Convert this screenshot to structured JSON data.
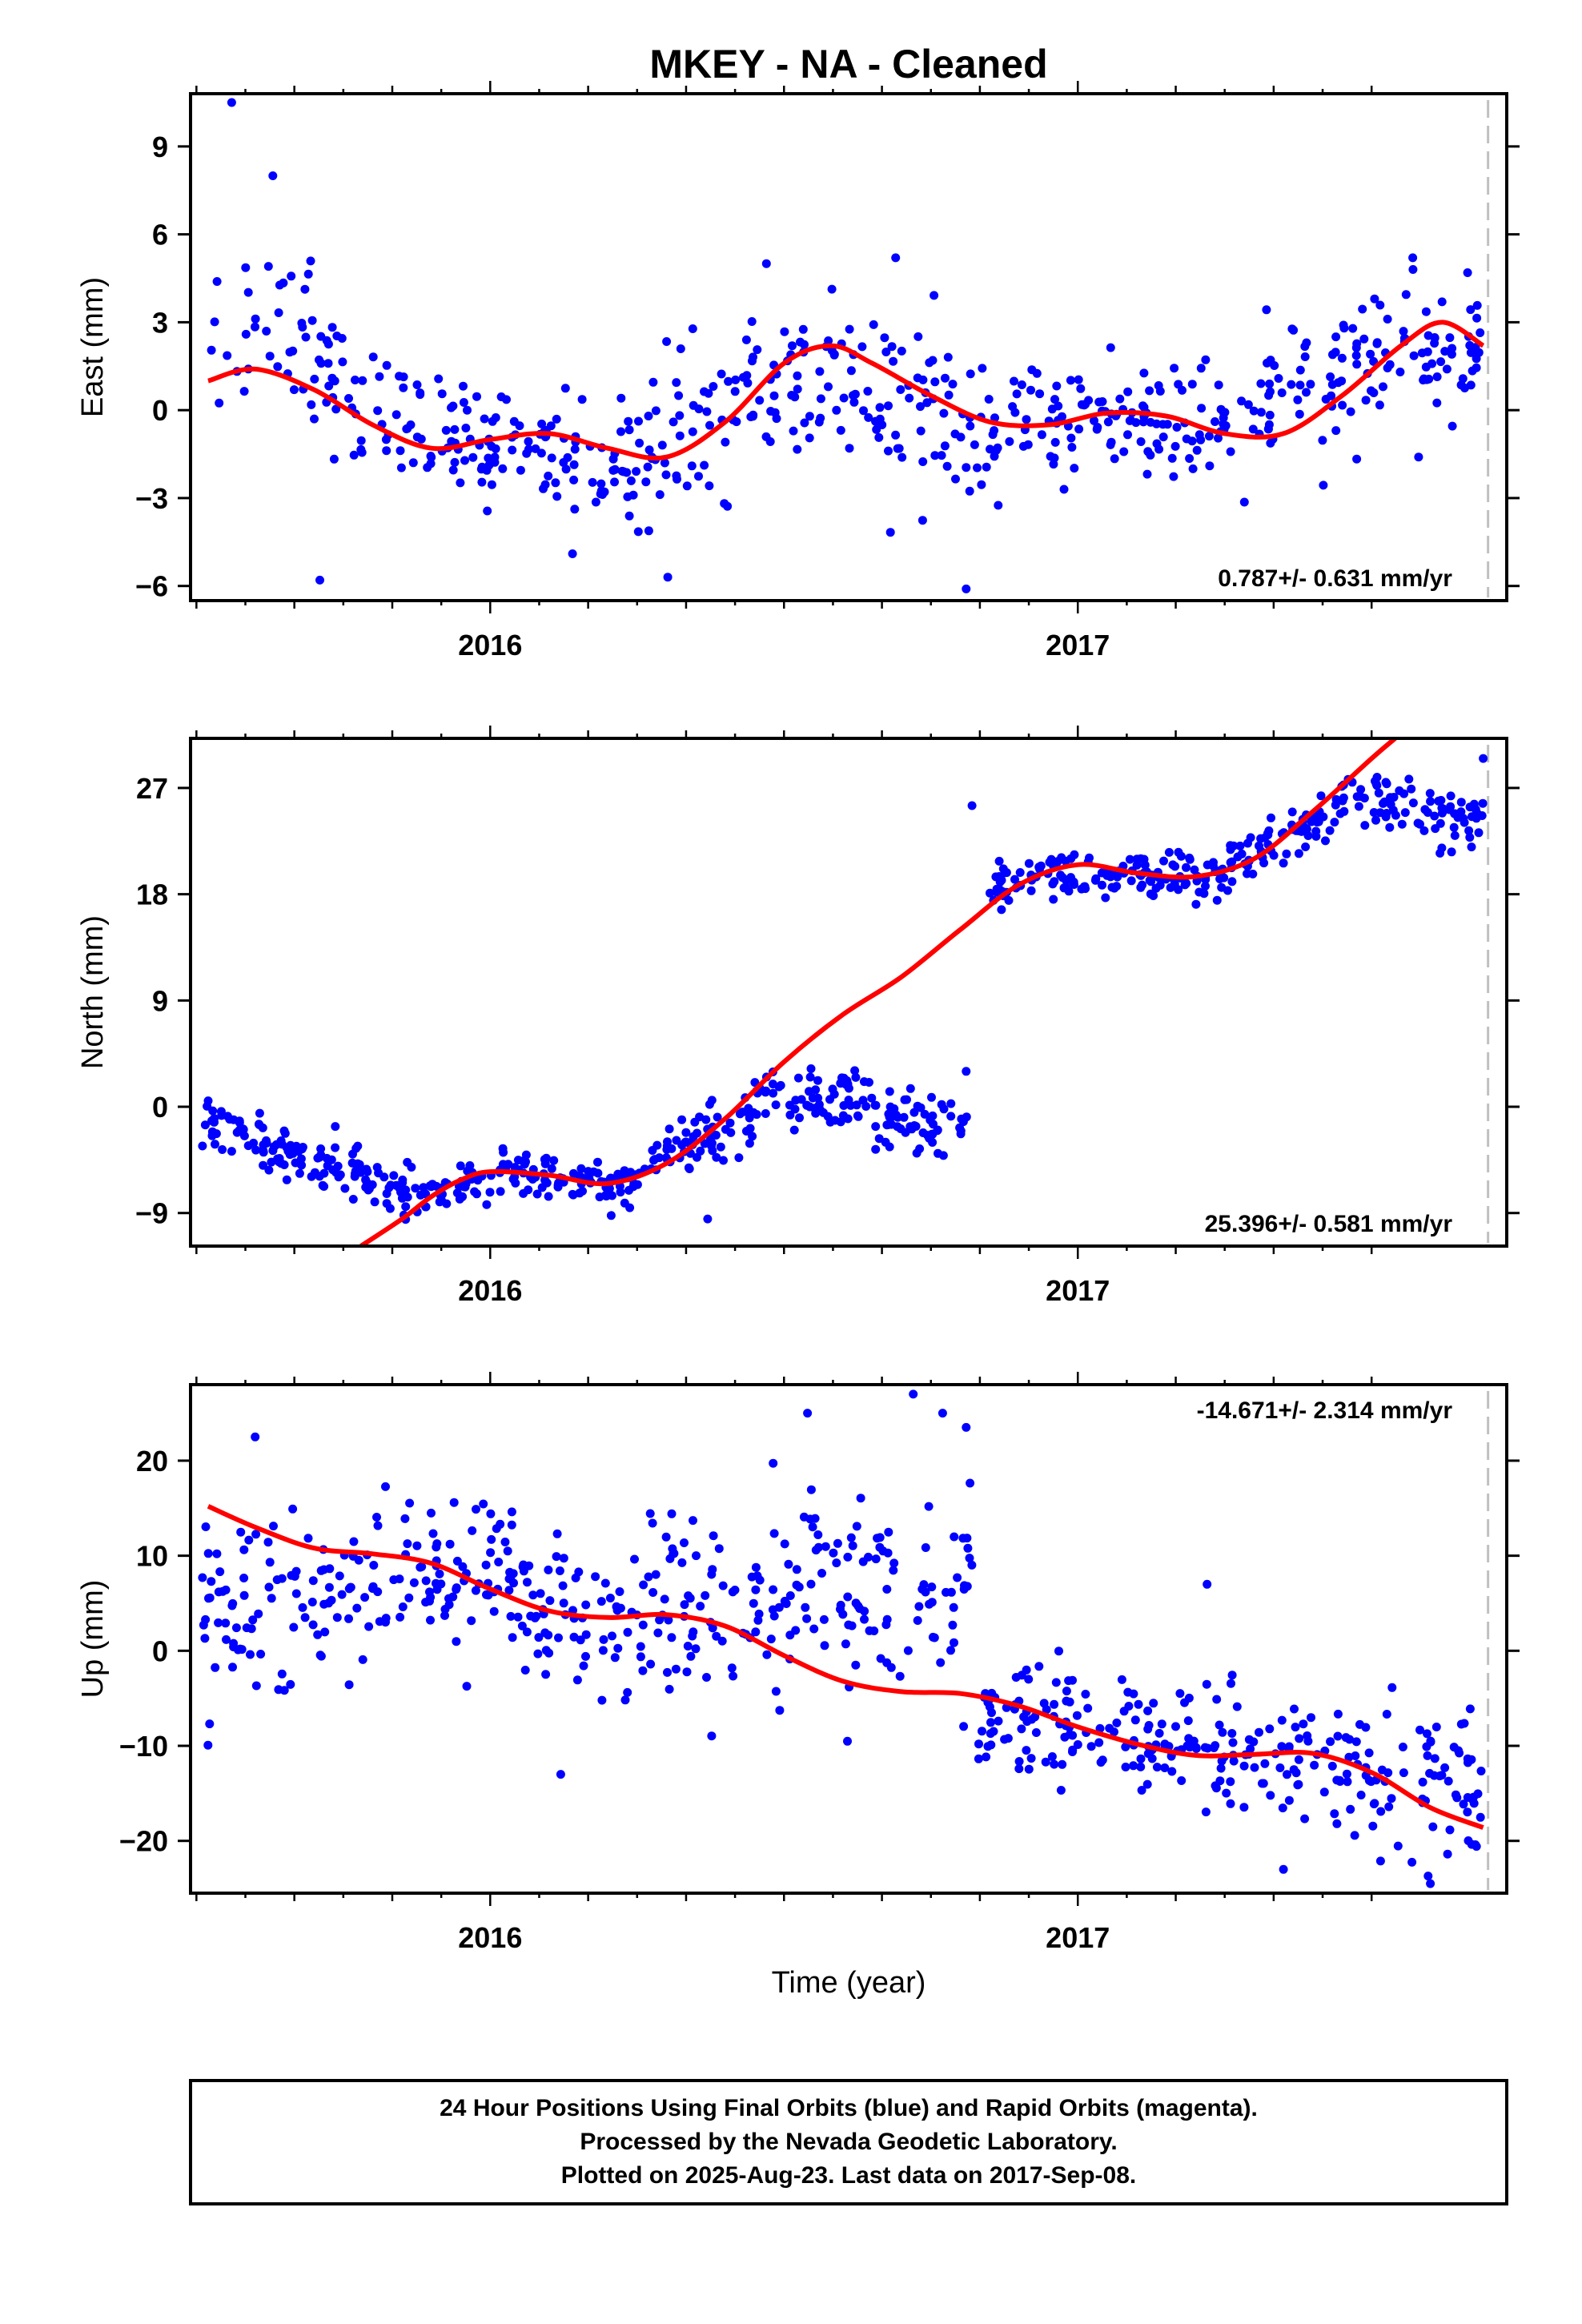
{
  "title": "MKEY  - NA - Cleaned",
  "xlabel": "Time (year)",
  "footer": [
    "24 Hour Positions Using Final Orbits (blue) and Rapid Orbits (magenta).",
    "Processed by the Nevada Geodetic Laboratory.",
    "Plotted on 2025-Aug-23. Last data on 2017-Sep-08."
  ],
  "colors": {
    "points": "#0000ff",
    "fit": "#ff0000",
    "last_data_line": "#c0c0c0"
  },
  "chart_data": [
    {
      "type": "scatter",
      "ylabel": "East (mm)",
      "rate": "0.787+/- 0.631 mm/yr",
      "xlim": [
        2015.49,
        2017.73
      ],
      "ylim": [
        -6.5,
        10.8
      ],
      "yticks": [
        9,
        6,
        3,
        0,
        -3,
        -6
      ],
      "ytick_labels": [
        "9",
        "6",
        "3",
        "0",
        "−3",
        "−6"
      ],
      "xticks": [
        2016,
        2017
      ],
      "last_data": 2017.69,
      "fit": {
        "x": [
          2015.52,
          2015.6,
          2015.7,
          2015.8,
          2015.9,
          2016.0,
          2016.1,
          2016.2,
          2016.3,
          2016.4,
          2016.5,
          2016.58,
          2016.65,
          2016.75,
          2016.85,
          2016.95,
          2017.05,
          2017.15,
          2017.25,
          2017.35,
          2017.45,
          2017.55,
          2017.62,
          2017.69
        ],
        "y": [
          1.0,
          1.4,
          0.7,
          -0.5,
          -1.3,
          -1.0,
          -0.8,
          -1.3,
          -1.6,
          -0.4,
          1.6,
          2.2,
          1.6,
          0.5,
          -0.4,
          -0.5,
          -0.1,
          -0.2,
          -0.8,
          -0.8,
          0.5,
          2.2,
          3.0,
          2.2
        ]
      },
      "segments": [
        {
          "x0": 2015.51,
          "x1": 2015.6,
          "n": 12,
          "c0": 2.0,
          "c1": 3.5,
          "s": 1.6
        },
        {
          "x0": 2015.6,
          "x1": 2015.7,
          "n": 22,
          "c0": 3.6,
          "c1": 3.0,
          "s": 1.6
        },
        {
          "x0": 2015.7,
          "x1": 2015.8,
          "n": 28,
          "c0": 1.5,
          "c1": 0.0,
          "s": 1.1
        },
        {
          "x0": 2015.8,
          "x1": 2016.0,
          "n": 60,
          "c0": -0.3,
          "c1": -1.2,
          "s": 1.0
        },
        {
          "x0": 2016.0,
          "x1": 2016.3,
          "n": 90,
          "c0": -1.0,
          "c1": -2.0,
          "s": 1.0
        },
        {
          "x0": 2016.3,
          "x1": 2016.5,
          "n": 55,
          "c0": -1.2,
          "c1": 1.2,
          "s": 1.3
        },
        {
          "x0": 2016.5,
          "x1": 2016.8,
          "n": 90,
          "c0": 1.2,
          "c1": -0.5,
          "s": 1.5
        },
        {
          "x0": 2016.8,
          "x1": 2017.0,
          "n": 55,
          "c0": -1.0,
          "c1": -0.5,
          "s": 1.0
        },
        {
          "x0": 2017.0,
          "x1": 2017.3,
          "n": 90,
          "c0": -0.2,
          "c1": -0.6,
          "s": 1.0
        },
        {
          "x0": 2017.3,
          "x1": 2017.5,
          "n": 60,
          "c0": -0.5,
          "c1": 1.8,
          "s": 1.2
        },
        {
          "x0": 2017.5,
          "x1": 2017.69,
          "n": 60,
          "c0": 2.3,
          "c1": 2.0,
          "s": 1.1
        }
      ],
      "outliers": [
        [
          2015.56,
          10.5
        ],
        [
          2015.63,
          8.0
        ],
        [
          2015.71,
          -5.8
        ],
        [
          2016.14,
          -4.9
        ],
        [
          2016.81,
          -6.1
        ],
        [
          2016.69,
          5.2
        ],
        [
          2016.47,
          5.0
        ],
        [
          2017.57,
          5.2
        ],
        [
          2017.58,
          -1.6
        ]
      ]
    },
    {
      "type": "scatter",
      "ylabel": "North (mm)",
      "rate": "25.396+/- 0.581 mm/yr",
      "xlim": [
        2015.49,
        2017.73
      ],
      "ylim": [
        -11.8,
        31.2
      ],
      "yticks": [
        27,
        18,
        9,
        0,
        -9
      ],
      "ytick_labels": [
        "27",
        "18",
        "9",
        "0",
        "−9"
      ],
      "xticks": [
        2016,
        2017
      ],
      "last_data": 2017.69,
      "fit": {
        "x": [
          2015.78,
          2015.85,
          2015.9,
          2015.95,
          2016.0,
          2016.1,
          2016.2,
          2016.3,
          2016.4,
          2016.5,
          2016.6,
          2016.7,
          2016.8,
          2016.9,
          2017.0,
          2017.1,
          2017.2,
          2017.3,
          2017.4,
          2017.5,
          2017.54
        ],
        "y": [
          -11.8,
          -9.5,
          -7.6,
          -6.2,
          -5.5,
          -5.8,
          -6.5,
          -4.8,
          -1.0,
          3.8,
          7.8,
          11.0,
          15.0,
          18.8,
          20.5,
          19.8,
          19.5,
          21.0,
          25.0,
          29.5,
          31.2
        ]
      },
      "segments": [
        {
          "x0": 2015.51,
          "x1": 2015.7,
          "n": 70,
          "c0": -1.5,
          "c1": -4.5,
          "s": 1.0
        },
        {
          "x0": 2015.7,
          "x1": 2015.9,
          "n": 75,
          "c0": -4.5,
          "c1": -8.0,
          "s": 1.1
        },
        {
          "x0": 2015.9,
          "x1": 2016.1,
          "n": 70,
          "c0": -7.0,
          "c1": -5.5,
          "s": 1.0
        },
        {
          "x0": 2016.1,
          "x1": 2016.25,
          "n": 55,
          "c0": -6.0,
          "c1": -6.5,
          "s": 1.0
        },
        {
          "x0": 2016.25,
          "x1": 2016.45,
          "n": 70,
          "c0": -5.5,
          "c1": -0.5,
          "s": 1.2
        },
        {
          "x0": 2016.45,
          "x1": 2016.65,
          "n": 70,
          "c0": 0.8,
          "c1": 0.5,
          "s": 1.4
        },
        {
          "x0": 2016.65,
          "x1": 2016.82,
          "n": 60,
          "c0": -1.0,
          "c1": -2.5,
          "s": 1.4
        },
        {
          "x0": 2016.85,
          "x1": 2017.0,
          "n": 55,
          "c0": 18.5,
          "c1": 20.0,
          "s": 1.0
        },
        {
          "x0": 2017.0,
          "x1": 2017.25,
          "n": 90,
          "c0": 19.5,
          "c1": 19.5,
          "s": 0.9
        },
        {
          "x0": 2017.25,
          "x1": 2017.45,
          "n": 70,
          "c0": 20.5,
          "c1": 25.0,
          "s": 1.0
        },
        {
          "x0": 2017.45,
          "x1": 2017.69,
          "n": 80,
          "c0": 26.0,
          "c1": 24.0,
          "s": 1.2
        }
      ],
      "outliers": [
        [
          2016.82,
          25.5
        ],
        [
          2017.69,
          29.5
        ],
        [
          2015.52,
          0.5
        ],
        [
          2016.37,
          -9.5
        ],
        [
          2016.81,
          3.0
        ],
        [
          2017.67,
          22.0
        ]
      ]
    },
    {
      "type": "scatter",
      "ylabel": "Up (mm)",
      "rate": "-14.671+/- 2.314 mm/yr",
      "xlim": [
        2015.49,
        2017.73
      ],
      "ylim": [
        -25.5,
        28.0
      ],
      "yticks": [
        20,
        10,
        0,
        -10,
        -20
      ],
      "ytick_labels": [
        "20",
        "10",
        "0",
        "−10",
        "−20"
      ],
      "xticks": [
        2016,
        2017
      ],
      "last_data": 2017.69,
      "fit": {
        "x": [
          2015.52,
          2015.6,
          2015.7,
          2015.8,
          2015.9,
          2016.0,
          2016.1,
          2016.2,
          2016.3,
          2016.4,
          2016.5,
          2016.6,
          2016.7,
          2016.8,
          2016.9,
          2017.0,
          2017.1,
          2017.2,
          2017.3,
          2017.4,
          2017.5,
          2017.6,
          2017.69
        ],
        "y": [
          15.2,
          13.0,
          10.8,
          10.2,
          9.2,
          6.5,
          4.2,
          3.5,
          3.8,
          2.6,
          -0.5,
          -3.2,
          -4.3,
          -4.5,
          -5.8,
          -8.0,
          -9.8,
          -11.0,
          -10.9,
          -10.8,
          -12.8,
          -16.5,
          -18.6
        ]
      },
      "segments": [
        {
          "x0": 2015.51,
          "x1": 2015.8,
          "n": 95,
          "c0": 5.0,
          "c1": 6.0,
          "s": 4.5
        },
        {
          "x0": 2015.8,
          "x1": 2016.05,
          "n": 85,
          "c0": 8.0,
          "c1": 8.0,
          "s": 4.0
        },
        {
          "x0": 2016.05,
          "x1": 2016.3,
          "n": 80,
          "c0": 4.5,
          "c1": 4.0,
          "s": 4.0
        },
        {
          "x0": 2016.3,
          "x1": 2016.6,
          "n": 95,
          "c0": 4.5,
          "c1": 5.0,
          "s": 5.5
        },
        {
          "x0": 2016.6,
          "x1": 2016.82,
          "n": 70,
          "c0": 5.0,
          "c1": 6.0,
          "s": 6.0
        },
        {
          "x0": 2016.83,
          "x1": 2017.1,
          "n": 90,
          "c0": -7.5,
          "c1": -8.5,
          "s": 3.2
        },
        {
          "x0": 2017.1,
          "x1": 2017.4,
          "n": 100,
          "c0": -10.5,
          "c1": -11.5,
          "s": 3.5
        },
        {
          "x0": 2017.4,
          "x1": 2017.69,
          "n": 95,
          "c0": -12.5,
          "c1": -16.5,
          "s": 4.0
        }
      ],
      "outliers": [
        [
          2015.6,
          22.5
        ],
        [
          2016.54,
          25.0
        ],
        [
          2016.72,
          27.0
        ],
        [
          2016.77,
          25.0
        ],
        [
          2016.81,
          23.5
        ],
        [
          2016.12,
          -13.0
        ],
        [
          2017.22,
          7.0
        ],
        [
          2017.35,
          -23.0
        ],
        [
          2017.6,
          -24.5
        ]
      ]
    }
  ]
}
